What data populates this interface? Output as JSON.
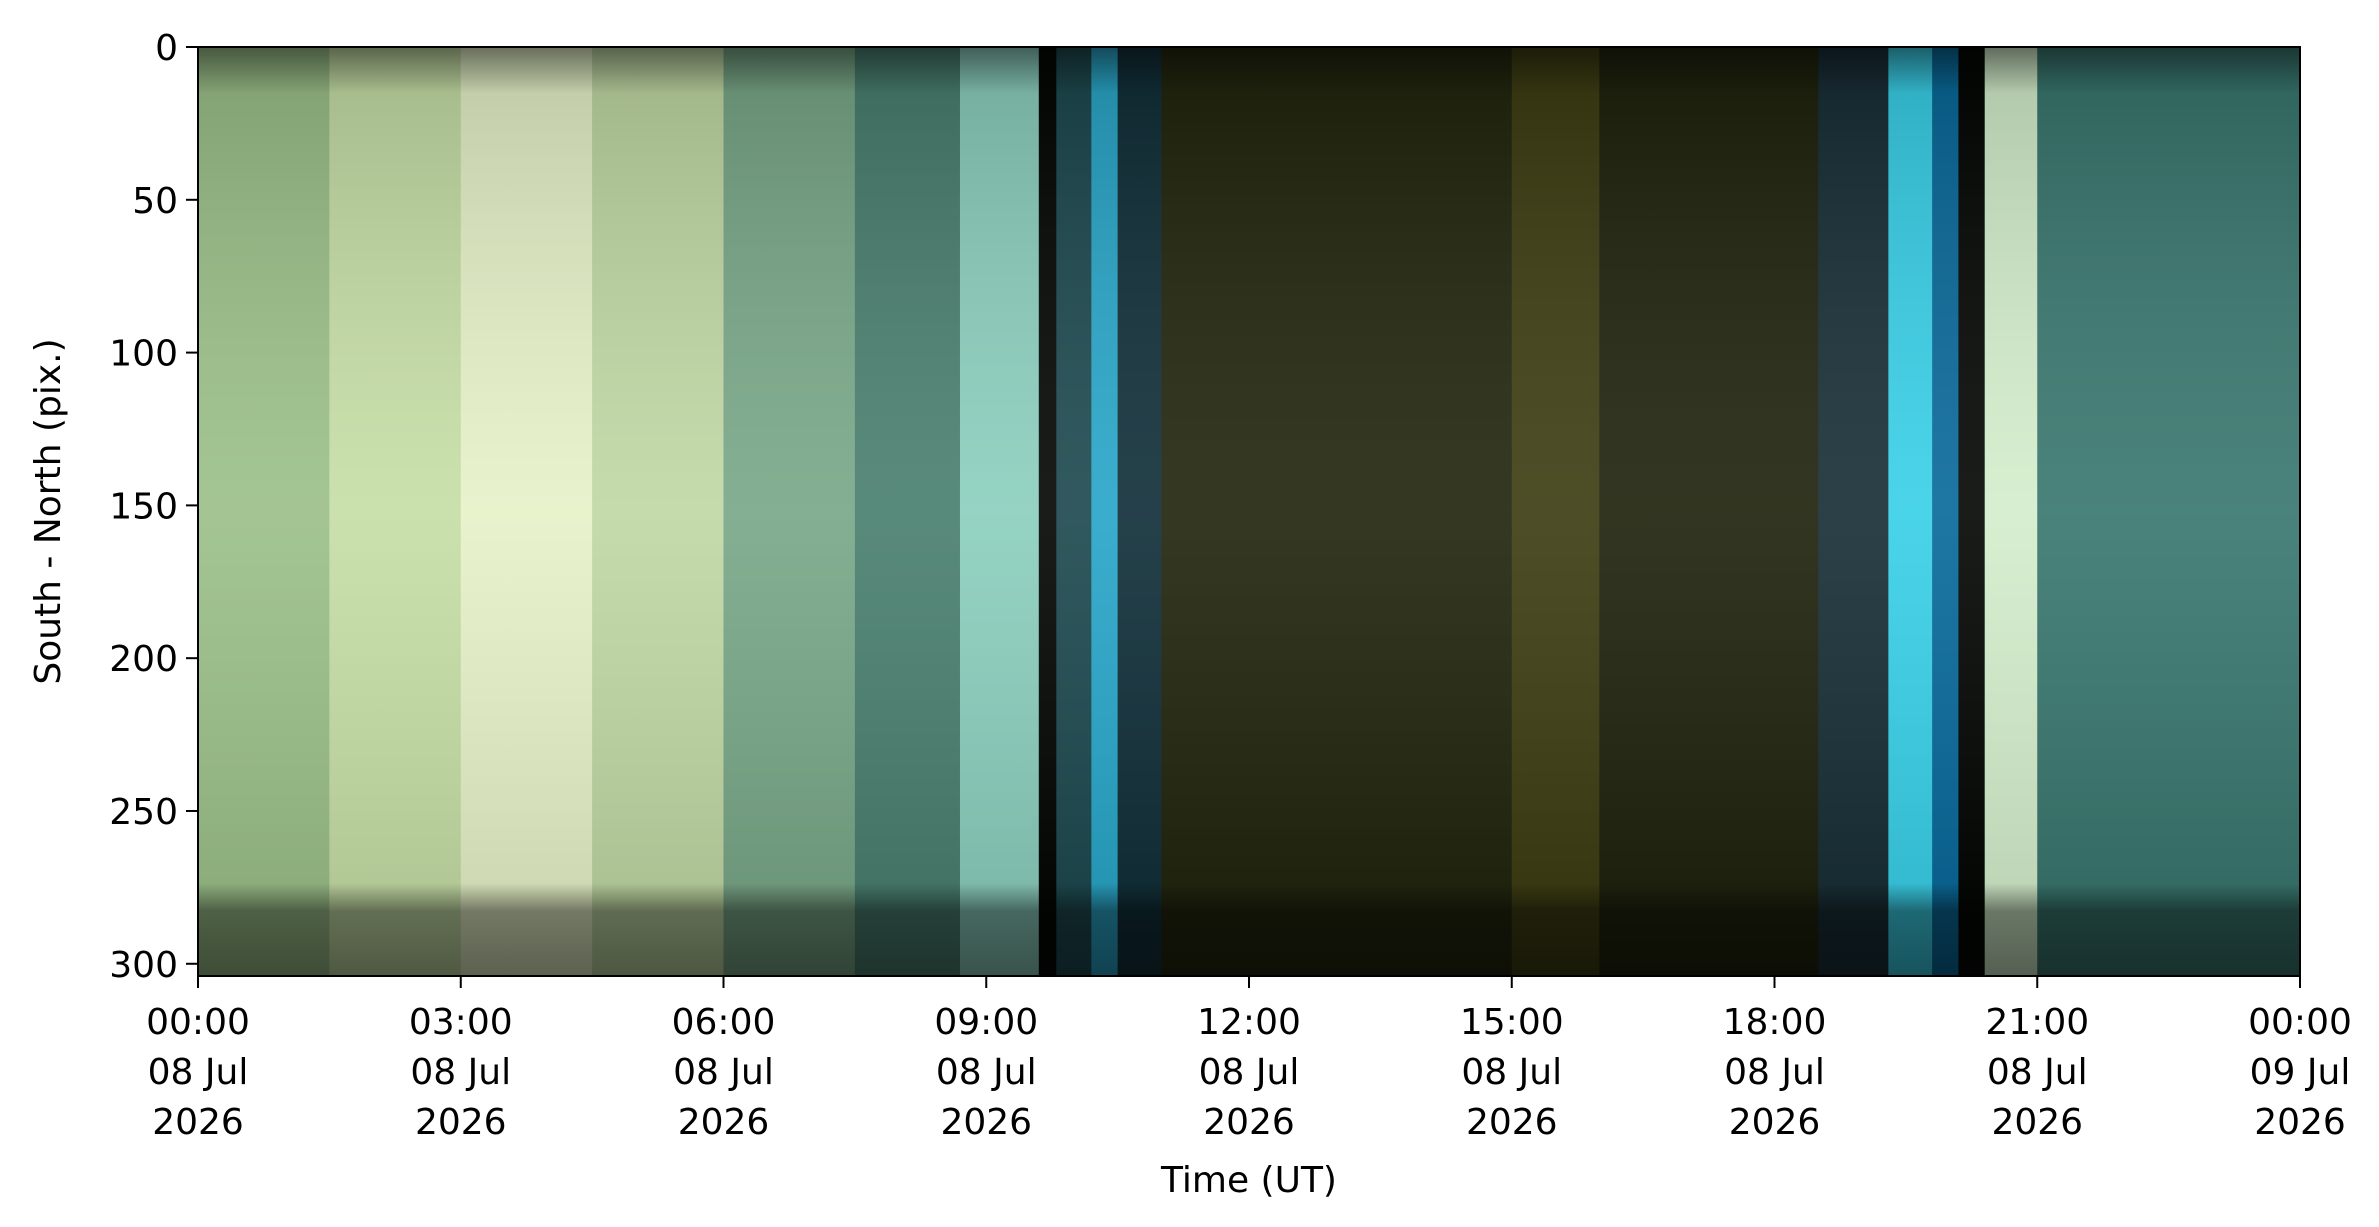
{
  "chart_data": {
    "type": "keogram",
    "xlabel": "Time (UT)",
    "ylabel": "South - North (pix.)",
    "xlim": [
      0,
      24
    ],
    "ylim": [
      304,
      0
    ],
    "xticks": [
      {
        "value": 0,
        "label": "00:00\n08 Jul\n2026"
      },
      {
        "value": 3,
        "label": "03:00\n08 Jul\n2026"
      },
      {
        "value": 6,
        "label": "06:00\n08 Jul\n2026"
      },
      {
        "value": 9,
        "label": "09:00\n08 Jul\n2026"
      },
      {
        "value": 12,
        "label": "12:00\n08 Jul\n2026"
      },
      {
        "value": 15,
        "label": "15:00\n08 Jul\n2026"
      },
      {
        "value": 18,
        "label": "18:00\n08 Jul\n2026"
      },
      {
        "value": 21,
        "label": "21:00\n08 Jul\n2026"
      },
      {
        "value": 24,
        "label": "00:00\n09 Jul\n2026"
      }
    ],
    "yticks": [
      0,
      50,
      100,
      150,
      200,
      250,
      300
    ],
    "columns": [
      {
        "x": [
          0,
          1.5
        ],
        "color": "#9cc08a"
      },
      {
        "x": [
          1.5,
          3
        ],
        "color": "#c6dea6"
      },
      {
        "x": [
          3,
          4.5
        ],
        "color": "#e6f2c8"
      },
      {
        "x": [
          4.5,
          6
        ],
        "color": "#c0d8a4"
      },
      {
        "x": [
          6,
          7.5
        ],
        "color": "#7aa888"
      },
      {
        "x": [
          7.5,
          8.7
        ],
        "color": "#4a8070"
      },
      {
        "x": [
          8.7,
          9.6
        ],
        "color": "#8ccfbe"
      },
      {
        "x": [
          9.6,
          9.8
        ],
        "color": "#050805"
      },
      {
        "x": [
          9.8,
          10.2
        ],
        "color": "#1e4a50"
      },
      {
        "x": [
          10.2,
          10.5
        ],
        "color": "#2aa6c8"
      },
      {
        "x": [
          10.5,
          11
        ],
        "color": "#12303a"
      },
      {
        "x": [
          11,
          15
        ],
        "color": "#23270f"
      },
      {
        "x": [
          15,
          16
        ],
        "color": "#3e3e14"
      },
      {
        "x": [
          16,
          18.5
        ],
        "color": "#20240e"
      },
      {
        "x": [
          18.5,
          19.3
        ],
        "color": "#1a3038"
      },
      {
        "x": [
          19.3,
          19.8
        ],
        "color": "#3ad0e8"
      },
      {
        "x": [
          19.8,
          20.1
        ],
        "color": "#0a6a9a"
      },
      {
        "x": [
          20.1,
          20.4
        ],
        "color": "#050805"
      },
      {
        "x": [
          20.4,
          21
        ],
        "color": "#d4eecc"
      },
      {
        "x": [
          21,
          24
        ],
        "color": "#3a7870"
      }
    ]
  }
}
